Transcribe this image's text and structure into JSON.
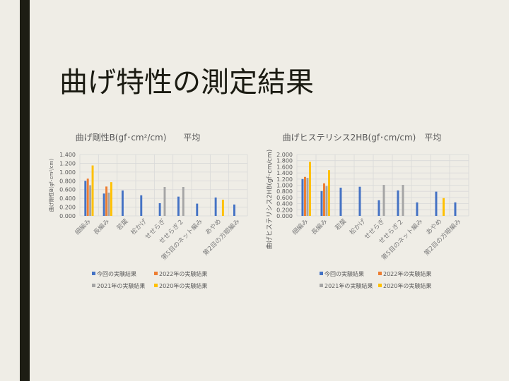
{
  "slide": {
    "title": "曲げ特性の測定結果"
  },
  "colors": {
    "series": [
      "#4472c4",
      "#ed7d31",
      "#a5a5a5",
      "#ffc000"
    ],
    "grid": "#d9d9d9",
    "text": "#595959"
  },
  "chart_data": [
    {
      "type": "bar",
      "title": "曲げ剛性B(gf･cm²/cm)　　平均",
      "ylabel": "曲げ剛性B(gf･cm²/cm)",
      "xlabel": "",
      "ylim": [
        0,
        1.4
      ],
      "yticks": [
        0,
        0.2,
        0.4,
        0.6,
        0.8,
        1.0,
        1.2,
        1.4
      ],
      "ytick_labels": [
        "0.000",
        "0.200",
        "0.400",
        "0.600",
        "0.800",
        "1.000",
        "1.200",
        "1.400"
      ],
      "grid": true,
      "legend": "bottom",
      "categories": [
        "細編み",
        "長編み",
        "若葉",
        "松かげ",
        "せせらぎ",
        "せせらぎ２",
        "第5目のネット編み",
        "あやめ",
        "第2目の方眼編み"
      ],
      "series": [
        {
          "name": "今回の実験結果",
          "values": [
            0.8,
            0.51,
            0.58,
            0.47,
            0.29,
            0.44,
            0.28,
            0.42,
            0.26
          ]
        },
        {
          "name": "2022年の実験結果",
          "values": [
            0.85,
            0.67,
            null,
            null,
            null,
            null,
            null,
            null,
            null
          ]
        },
        {
          "name": "2021年の実験結果",
          "values": [
            0.7,
            0.53,
            null,
            null,
            0.66,
            0.66,
            null,
            null,
            null
          ]
        },
        {
          "name": "2020年の実験結果",
          "values": [
            1.15,
            0.77,
            null,
            null,
            null,
            null,
            null,
            0.37,
            null
          ]
        }
      ]
    },
    {
      "type": "bar",
      "title": "曲げヒステリシス2HB(gf･cm/cm)　平均",
      "ylabel": "曲げヒステリシス2HB(gf･cm/cm)",
      "xlabel": "",
      "ylim": [
        0,
        2.0
      ],
      "yticks": [
        0,
        0.2,
        0.4,
        0.6,
        0.8,
        1.0,
        1.2,
        1.4,
        1.6,
        1.8,
        2.0
      ],
      "ytick_labels": [
        "0.000",
        "0.200",
        "0.400",
        "0.600",
        "0.800",
        "1.000",
        "1.200",
        "1.400",
        "1.600",
        "1.800",
        "2.000"
      ],
      "grid": true,
      "legend": "bottom",
      "categories": [
        "細編み",
        "長編み",
        "若葉",
        "松かげ",
        "せせらぎ",
        "せせらぎ２",
        "第5目のネット編み",
        "あやめ",
        "第2目の方眼編み"
      ],
      "series": [
        {
          "name": "今回の実験結果",
          "values": [
            1.2,
            0.81,
            0.92,
            0.95,
            0.51,
            0.83,
            0.44,
            0.79,
            0.44
          ]
        },
        {
          "name": "2022年の実験結果",
          "values": [
            1.27,
            1.06,
            null,
            null,
            null,
            null,
            null,
            null,
            null
          ]
        },
        {
          "name": "2021年の実験結果",
          "values": [
            1.24,
            0.97,
            null,
            null,
            1.01,
            1.01,
            null,
            null,
            null
          ]
        },
        {
          "name": "2020年の実験結果",
          "values": [
            1.76,
            1.49,
            null,
            null,
            null,
            null,
            null,
            0.58,
            null
          ]
        }
      ]
    }
  ]
}
